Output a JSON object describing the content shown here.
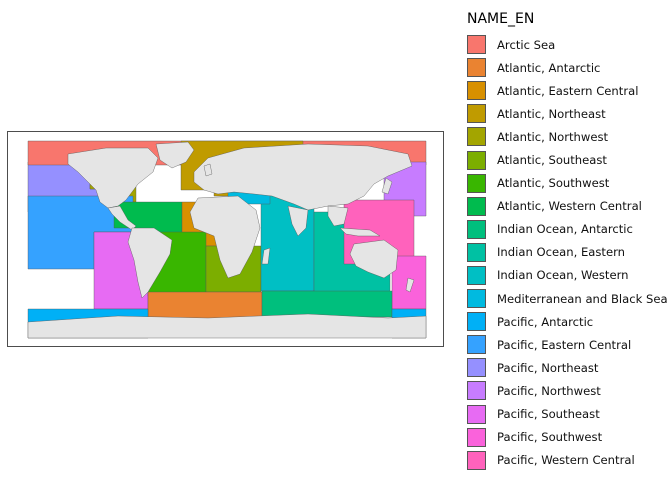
{
  "legend": {
    "title": "NAME_EN",
    "items": [
      {
        "label": "Arctic Sea",
        "color": "#F8766D"
      },
      {
        "label": "Atlantic, Antarctic",
        "color": "#EA8331"
      },
      {
        "label": "Atlantic, Eastern Central",
        "color": "#D89000"
      },
      {
        "label": "Atlantic, Northeast",
        "color": "#C09B00"
      },
      {
        "label": "Atlantic, Northwest",
        "color": "#A3A500"
      },
      {
        "label": "Atlantic, Southeast",
        "color": "#7CAE00"
      },
      {
        "label": "Atlantic, Southwest",
        "color": "#39B600"
      },
      {
        "label": "Atlantic, Western Central",
        "color": "#00BB4E"
      },
      {
        "label": "Indian Ocean, Antarctic",
        "color": "#00BF7D"
      },
      {
        "label": "Indian Ocean, Eastern",
        "color": "#00C1A3"
      },
      {
        "label": "Indian Ocean, Western",
        "color": "#00BFC4"
      },
      {
        "label": "Mediterranean and Black Sea",
        "color": "#00BAE0"
      },
      {
        "label": "Pacific, Antarctic",
        "color": "#00B0F6"
      },
      {
        "label": "Pacific, Eastern Central",
        "color": "#35A2FF"
      },
      {
        "label": "Pacific, Northeast",
        "color": "#9590FF"
      },
      {
        "label": "Pacific, Northwest",
        "color": "#C77CFF"
      },
      {
        "label": "Pacific, Southeast",
        "color": "#E76BF3"
      },
      {
        "label": "Pacific, Southwest",
        "color": "#FA62DB"
      },
      {
        "label": "Pacific, Western Central",
        "color": "#FF62BC"
      }
    ]
  },
  "map": {
    "land_color": "#E5E5E5",
    "border_color": "#555555"
  }
}
